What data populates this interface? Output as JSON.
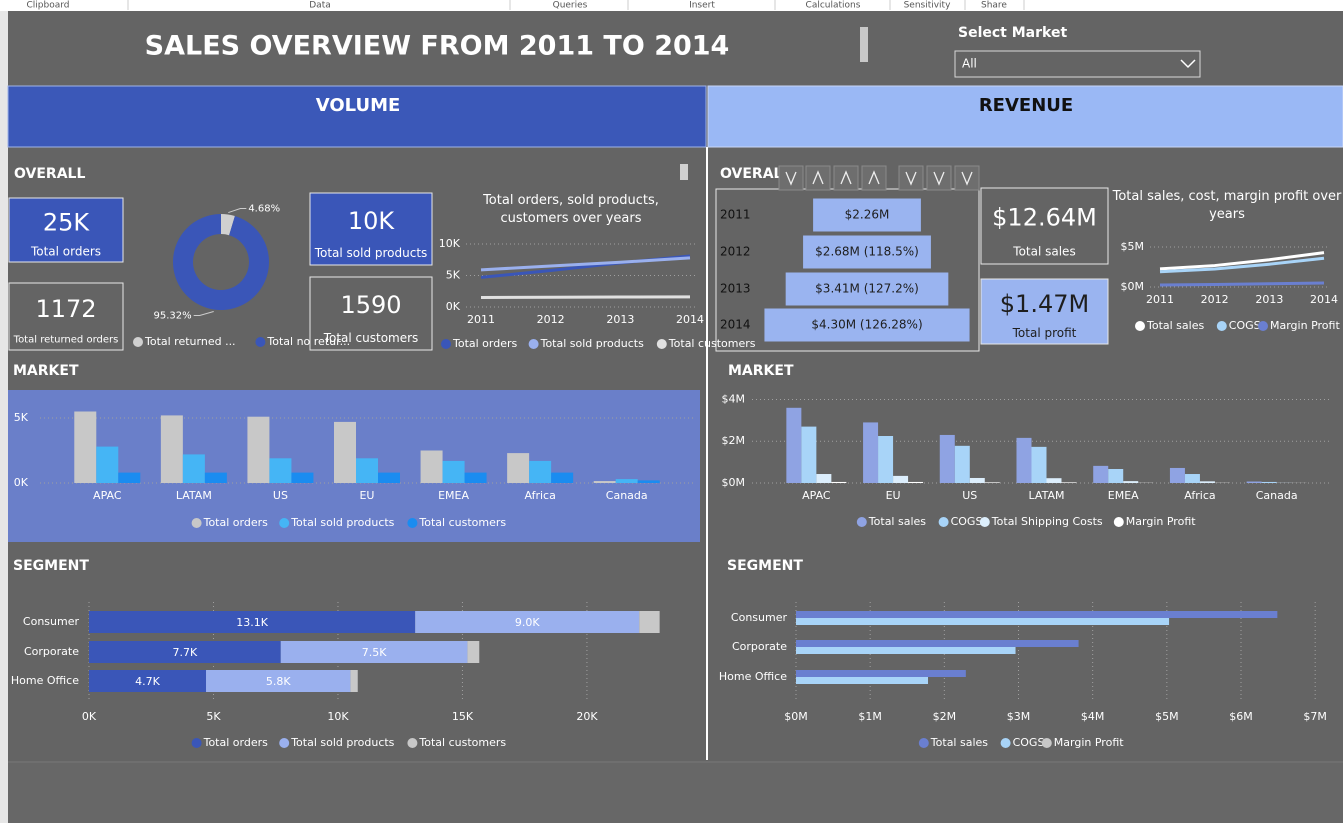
{
  "ribbon": [
    "Clipboard",
    "Data",
    "Queries",
    "Insert",
    "Calculations",
    "Sensitivity",
    "Share"
  ],
  "header": {
    "title": "SALES OVERVIEW FROM 2011 TO 2014",
    "slicer_label": "Select Market",
    "slicer_value": "All"
  },
  "volume": {
    "heading": "VOLUME",
    "overall_label": "OVERALL",
    "market_label": "MARKET",
    "segment_label": "SEGMENT",
    "cards": [
      {
        "value": "25K",
        "label": "Total orders"
      },
      {
        "value": "10K",
        "label": "Total sold products"
      },
      {
        "value": "1172",
        "label": "Total returned orders"
      },
      {
        "value": "1590",
        "label": "Total customers"
      }
    ],
    "donut": {
      "type": "pie",
      "categories": [
        "Total returned ...",
        "Total no retur..."
      ],
      "values": [
        4.68,
        95.32
      ],
      "value_labels": [
        "4.68%",
        "95.32%"
      ],
      "colors": [
        "#d0d0d0",
        "#3a56b8"
      ]
    },
    "trend": {
      "type": "line",
      "title": "Total orders, sold products, customers over years",
      "x": [
        2011,
        2012,
        2013,
        2014
      ],
      "xlim": [
        2011,
        2014
      ],
      "ylim": [
        0,
        10000
      ],
      "yticks": [
        {
          "value": 0,
          "label": "0K"
        },
        {
          "value": 5000,
          "label": "5K"
        },
        {
          "value": 10000,
          "label": "10K"
        }
      ],
      "grid": true,
      "series": [
        {
          "name": "Total orders",
          "color": "#3a56b8",
          "values": [
            4700,
            5800,
            7000,
            8100
          ]
        },
        {
          "name": "Total sold products",
          "color": "#9ab0ee",
          "values": [
            5900,
            6500,
            7100,
            7800
          ]
        },
        {
          "name": "Total customers",
          "color": "#e0e0e0",
          "values": [
            1500,
            1550,
            1580,
            1600
          ]
        }
      ]
    },
    "market": {
      "type": "bar",
      "categories": [
        "APAC",
        "LATAM",
        "US",
        "EU",
        "EMEA",
        "Africa",
        "Canada"
      ],
      "ylim": [
        0,
        6000
      ],
      "yticks": [
        {
          "value": 0,
          "label": "0K"
        },
        {
          "value": 5000,
          "label": "5K"
        }
      ],
      "grid": true,
      "series": [
        {
          "name": "Total orders",
          "color": "#c8c8c8",
          "values": [
            5500,
            5200,
            5100,
            4700,
            2500,
            2300,
            150
          ]
        },
        {
          "name": "Total sold products",
          "color": "#45b5f5",
          "values": [
            2800,
            2200,
            1900,
            1900,
            1700,
            1700,
            300
          ]
        },
        {
          "name": "Total customers",
          "color": "#1a8cf0",
          "values": [
            800,
            800,
            800,
            800,
            800,
            800,
            200
          ]
        }
      ]
    },
    "segment": {
      "type": "stacked-barh",
      "categories": [
        "Consumer",
        "Corporate",
        "Home Office"
      ],
      "xlim": [
        0,
        24300
      ],
      "xticks": [
        {
          "value": 0,
          "label": "0K"
        },
        {
          "value": 5000,
          "label": "5K"
        },
        {
          "value": 10000,
          "label": "10K"
        },
        {
          "value": 15000,
          "label": "15K"
        },
        {
          "value": 20000,
          "label": "20K"
        }
      ],
      "grid": true,
      "series": [
        {
          "name": "Total orders",
          "color": "#3a56b8",
          "values": [
            13100,
            7700,
            4700
          ],
          "value_labels": [
            "13.1K",
            "7.7K",
            "4.7K"
          ]
        },
        {
          "name": "Total sold products",
          "color": "#9ab0ee",
          "values": [
            9000,
            7500,
            5800
          ],
          "value_labels": [
            "9.0K",
            "7.5K",
            "5.8K"
          ]
        },
        {
          "name": "Total customers",
          "color": "#c8c8c8",
          "values": [
            820,
            476,
            294
          ]
        }
      ]
    }
  },
  "revenue": {
    "heading": "REVENUE",
    "overall_label": "OVERALL",
    "market_label": "MARKET",
    "segment_label": "SEGMENT",
    "yearly": {
      "type": "funnel",
      "categories": [
        "2011",
        "2012",
        "2013",
        "2014"
      ],
      "values": [
        2.26,
        2.68,
        3.41,
        4.3
      ],
      "value_labels": [
        "$2.26M",
        "$2.68M (118.5%)",
        "$3.41M (127.2%)",
        "$4.30M (126.28%)"
      ],
      "color": "#9ab4f0"
    },
    "cards": [
      {
        "value": "$12.64M",
        "label": "Total sales"
      },
      {
        "value": "$1.47M",
        "label": "Total profit"
      }
    ],
    "trend": {
      "type": "line",
      "title": "Total sales, cost, margin profit over years",
      "x": [
        2011,
        2012,
        2013,
        2014
      ],
      "xlim": [
        2011,
        2014
      ],
      "ylim": [
        0,
        6
      ],
      "yticks": [
        {
          "value": 0,
          "label": "$0M"
        },
        {
          "value": 5,
          "label": "$5M"
        }
      ],
      "grid": true,
      "series": [
        {
          "name": "Total sales",
          "color": "#ffffff",
          "values": [
            2.26,
            2.68,
            3.41,
            4.3
          ]
        },
        {
          "name": "COGS",
          "color": "#a8d4f8",
          "values": [
            1.9,
            2.25,
            2.85,
            3.6
          ]
        },
        {
          "name": "Margin Profit",
          "color": "#6a7fd0",
          "values": [
            0.25,
            0.31,
            0.41,
            0.5
          ]
        }
      ]
    },
    "market": {
      "type": "bar",
      "categories": [
        "APAC",
        "EU",
        "US",
        "LATAM",
        "EMEA",
        "Africa",
        "Canada"
      ],
      "ylim": [
        0,
        4.5
      ],
      "yticks": [
        {
          "value": 0,
          "label": "$0M"
        },
        {
          "value": 2,
          "label": "$2M"
        },
        {
          "value": 4,
          "label": "$4M"
        }
      ],
      "grid": true,
      "series": [
        {
          "name": "Total sales",
          "color": "#8fa3e3",
          "values": [
            3.6,
            2.9,
            2.3,
            2.16,
            0.82,
            0.72,
            0.07
          ]
        },
        {
          "name": "COGS",
          "color": "#a8d4f8",
          "values": [
            2.7,
            2.25,
            1.78,
            1.73,
            0.67,
            0.43,
            0.05
          ]
        },
        {
          "name": "Total Shipping Costs",
          "color": "#dceefc",
          "values": [
            0.43,
            0.34,
            0.24,
            0.23,
            0.09,
            0.08,
            0.01
          ]
        },
        {
          "name": "Margin Profit",
          "color": "#ffffff",
          "values": [
            0.05,
            0.05,
            0.03,
            0.03,
            0.01,
            0.01,
            0.005
          ]
        }
      ]
    },
    "segment": {
      "type": "barh",
      "categories": [
        "Consumer",
        "Corporate",
        "Home Office"
      ],
      "xlim": [
        0,
        7.2
      ],
      "xticks": [
        {
          "value": 0,
          "label": "$0M"
        },
        {
          "value": 1,
          "label": "$1M"
        },
        {
          "value": 2,
          "label": "$2M"
        },
        {
          "value": 3,
          "label": "$3M"
        },
        {
          "value": 4,
          "label": "$4M"
        },
        {
          "value": 5,
          "label": "$5M"
        },
        {
          "value": 6,
          "label": "$6M"
        },
        {
          "value": 7,
          "label": "$7M"
        }
      ],
      "grid": true,
      "series": [
        {
          "name": "Total sales",
          "color": "#6a7fd0",
          "values": [
            6.49,
            3.81,
            2.29
          ]
        },
        {
          "name": "COGS",
          "color": "#a8d4f8",
          "values": [
            5.03,
            2.96,
            1.78
          ]
        },
        {
          "name": "Margin Profit",
          "color": "#c8c8c8"
        }
      ]
    }
  }
}
